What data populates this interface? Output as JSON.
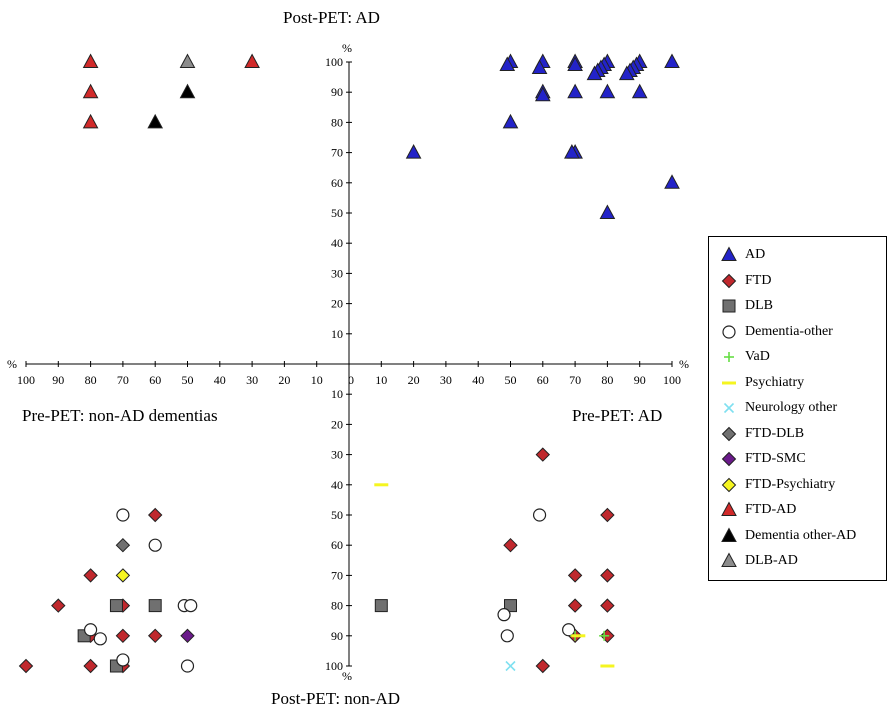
{
  "quadrant_labels": {
    "top": "Post-PET: AD",
    "bottom": "Post-PET: non-AD",
    "left": "Pre-PET: non-AD dementias",
    "right": "Pre-PET: AD"
  },
  "axis": {
    "unit": "%",
    "ticks": [
      0,
      10,
      20,
      30,
      40,
      50,
      60,
      70,
      80,
      90,
      100
    ]
  },
  "chart_data": {
    "type": "scatter",
    "title": "",
    "axes": {
      "x_right": {
        "label": "Pre-PET: AD",
        "range": [
          0,
          100
        ],
        "unit": "%"
      },
      "x_left": {
        "label": "Pre-PET: non-AD dementias",
        "range": [
          0,
          100
        ],
        "unit": "%"
      },
      "y_up": {
        "label": "Post-PET: AD",
        "range": [
          0,
          100
        ],
        "unit": "%"
      },
      "y_down": {
        "label": "Post-PET: non-AD",
        "range": [
          0,
          100
        ],
        "unit": "%"
      }
    },
    "legend_position": "right",
    "grid": false,
    "series": [
      {
        "name": "AD",
        "key": "ad",
        "marker": "triangle",
        "color": "#2323c8",
        "points": [
          {
            "quadrant": "upper-right",
            "x": 100,
            "y": 100
          },
          {
            "quadrant": "upper-right",
            "x": 100,
            "y": 60
          },
          {
            "quadrant": "upper-right",
            "x": 90,
            "y": 100
          },
          {
            "quadrant": "upper-right",
            "x": 89,
            "y": 99
          },
          {
            "quadrant": "upper-right",
            "x": 88,
            "y": 98
          },
          {
            "quadrant": "upper-right",
            "x": 87,
            "y": 97
          },
          {
            "quadrant": "upper-right",
            "x": 86,
            "y": 96
          },
          {
            "quadrant": "upper-right",
            "x": 90,
            "y": 90
          },
          {
            "quadrant": "upper-right",
            "x": 80,
            "y": 100
          },
          {
            "quadrant": "upper-right",
            "x": 79,
            "y": 99
          },
          {
            "quadrant": "upper-right",
            "x": 78,
            "y": 98
          },
          {
            "quadrant": "upper-right",
            "x": 77,
            "y": 97
          },
          {
            "quadrant": "upper-right",
            "x": 76,
            "y": 96
          },
          {
            "quadrant": "upper-right",
            "x": 80,
            "y": 90
          },
          {
            "quadrant": "upper-right",
            "x": 80,
            "y": 50
          },
          {
            "quadrant": "upper-right",
            "x": 70,
            "y": 100
          },
          {
            "quadrant": "upper-right",
            "x": 70,
            "y": 99
          },
          {
            "quadrant": "upper-right",
            "x": 70,
            "y": 90
          },
          {
            "quadrant": "upper-right",
            "x": 70,
            "y": 70
          },
          {
            "quadrant": "upper-right",
            "x": 69,
            "y": 70
          },
          {
            "quadrant": "upper-right",
            "x": 60,
            "y": 100
          },
          {
            "quadrant": "upper-right",
            "x": 59,
            "y": 98
          },
          {
            "quadrant": "upper-right",
            "x": 60,
            "y": 90
          },
          {
            "quadrant": "upper-right",
            "x": 60,
            "y": 89
          },
          {
            "quadrant": "upper-right",
            "x": 50,
            "y": 100
          },
          {
            "quadrant": "upper-right",
            "x": 49,
            "y": 99
          },
          {
            "quadrant": "upper-right",
            "x": 50,
            "y": 80
          },
          {
            "quadrant": "upper-right",
            "x": 20,
            "y": 70
          }
        ]
      },
      {
        "name": "FTD",
        "key": "ftd",
        "marker": "diamond",
        "color": "#c0282d",
        "points": [
          {
            "quadrant": "lower-right",
            "x": 60,
            "y": 30
          },
          {
            "quadrant": "lower-right",
            "x": 50,
            "y": 60
          },
          {
            "quadrant": "lower-right",
            "x": 60,
            "y": 100
          },
          {
            "quadrant": "lower-right",
            "x": 80,
            "y": 50
          },
          {
            "quadrant": "lower-right",
            "x": 70,
            "y": 70
          },
          {
            "quadrant": "lower-right",
            "x": 80,
            "y": 70
          },
          {
            "quadrant": "lower-right",
            "x": 70,
            "y": 80
          },
          {
            "quadrant": "lower-right",
            "x": 80,
            "y": 80
          },
          {
            "quadrant": "lower-right",
            "x": 70,
            "y": 90
          },
          {
            "quadrant": "lower-right",
            "x": 80,
            "y": 90
          },
          {
            "quadrant": "lower-left",
            "x": 60,
            "y": 50
          },
          {
            "quadrant": "lower-left",
            "x": 80,
            "y": 70
          },
          {
            "quadrant": "lower-left",
            "x": 90,
            "y": 80
          },
          {
            "quadrant": "lower-left",
            "x": 70,
            "y": 80
          },
          {
            "quadrant": "lower-left",
            "x": 80,
            "y": 90
          },
          {
            "quadrant": "lower-left",
            "x": 70,
            "y": 90
          },
          {
            "quadrant": "lower-left",
            "x": 60,
            "y": 90
          },
          {
            "quadrant": "lower-left",
            "x": 100,
            "y": 100
          },
          {
            "quadrant": "lower-left",
            "x": 80,
            "y": 100
          },
          {
            "quadrant": "lower-left",
            "x": 70,
            "y": 100
          }
        ]
      },
      {
        "name": "DLB",
        "key": "dlb",
        "marker": "square",
        "color": "#707070",
        "points": [
          {
            "quadrant": "lower-right",
            "x": 10,
            "y": 80
          },
          {
            "quadrant": "lower-right",
            "x": 50,
            "y": 80
          },
          {
            "quadrant": "lower-left",
            "x": 72,
            "y": 80
          },
          {
            "quadrant": "lower-left",
            "x": 60,
            "y": 80
          },
          {
            "quadrant": "lower-left",
            "x": 82,
            "y": 90
          },
          {
            "quadrant": "lower-left",
            "x": 72,
            "y": 100
          }
        ]
      },
      {
        "name": "Dementia-other",
        "key": "dem_other",
        "marker": "circle",
        "color": "#ffffff",
        "points": [
          {
            "quadrant": "lower-right",
            "x": 59,
            "y": 50
          },
          {
            "quadrant": "lower-right",
            "x": 48,
            "y": 83
          },
          {
            "quadrant": "lower-right",
            "x": 49,
            "y": 90
          },
          {
            "quadrant": "lower-right",
            "x": 68,
            "y": 88
          },
          {
            "quadrant": "lower-left",
            "x": 70,
            "y": 50
          },
          {
            "quadrant": "lower-left",
            "x": 60,
            "y": 60
          },
          {
            "quadrant": "lower-left",
            "x": 51,
            "y": 80
          },
          {
            "quadrant": "lower-left",
            "x": 49,
            "y": 80
          },
          {
            "quadrant": "lower-left",
            "x": 80,
            "y": 88
          },
          {
            "quadrant": "lower-left",
            "x": 77,
            "y": 91
          },
          {
            "quadrant": "lower-left",
            "x": 70,
            "y": 98
          },
          {
            "quadrant": "lower-left",
            "x": 50,
            "y": 100
          }
        ]
      },
      {
        "name": "VaD",
        "key": "vad",
        "marker": "plus",
        "color": "#66dd44",
        "points": [
          {
            "quadrant": "lower-right",
            "x": 70,
            "y": 90
          },
          {
            "quadrant": "lower-right",
            "x": 79,
            "y": 90
          }
        ]
      },
      {
        "name": "Psychiatry",
        "key": "psych",
        "marker": "dash",
        "color": "#f5f520",
        "points": [
          {
            "quadrant": "lower-right",
            "x": 10,
            "y": 40
          },
          {
            "quadrant": "lower-right",
            "x": 71,
            "y": 90
          },
          {
            "quadrant": "lower-right",
            "x": 80,
            "y": 100
          }
        ]
      },
      {
        "name": "Neurology other",
        "key": "neuro",
        "marker": "cross",
        "color": "#7fe0f0",
        "points": [
          {
            "quadrant": "lower-right",
            "x": 50,
            "y": 100
          }
        ]
      },
      {
        "name": "FTD-DLB",
        "key": "ftd_dlb",
        "marker": "diamond",
        "color": "#707070",
        "points": [
          {
            "quadrant": "lower-left",
            "x": 70,
            "y": 60
          }
        ]
      },
      {
        "name": "FTD-SMC",
        "key": "ftd_smc",
        "marker": "diamond",
        "color": "#6a1a8a",
        "points": [
          {
            "quadrant": "lower-left",
            "x": 50,
            "y": 90
          }
        ]
      },
      {
        "name": "FTD-Psychiatry",
        "key": "ftd_psych",
        "marker": "diamond",
        "color": "#f5f520",
        "points": [
          {
            "quadrant": "lower-left",
            "x": 70,
            "y": 70
          }
        ]
      },
      {
        "name": "FTD-AD",
        "key": "ftd_ad",
        "marker": "triangle",
        "color": "#d12a2a",
        "points": [
          {
            "quadrant": "upper-left",
            "x": 80,
            "y": 100
          },
          {
            "quadrant": "upper-left",
            "x": 80,
            "y": 90
          },
          {
            "quadrant": "upper-left",
            "x": 80,
            "y": 80
          },
          {
            "quadrant": "upper-left",
            "x": 30,
            "y": 100
          }
        ]
      },
      {
        "name": "Dementia other-AD",
        "key": "dem_other_ad",
        "marker": "triangle",
        "color": "#000000",
        "points": [
          {
            "quadrant": "upper-left",
            "x": 50,
            "y": 90
          },
          {
            "quadrant": "upper-left",
            "x": 60,
            "y": 80
          }
        ]
      },
      {
        "name": "DLB-AD",
        "key": "dlb_ad",
        "marker": "triangle",
        "color": "#8c8c8c",
        "points": [
          {
            "quadrant": "upper-left",
            "x": 50,
            "y": 100
          }
        ]
      }
    ]
  }
}
